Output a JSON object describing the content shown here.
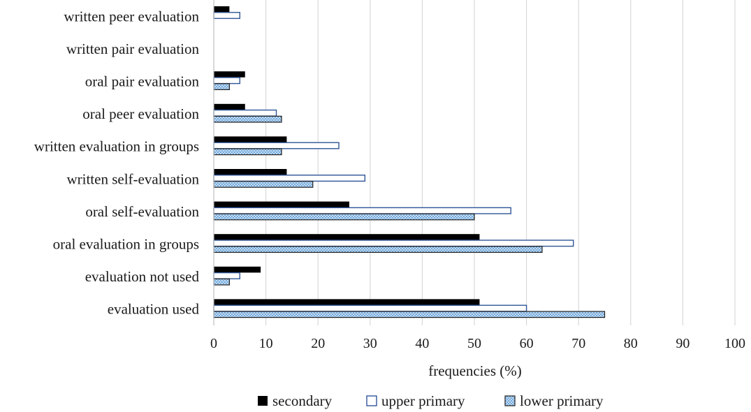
{
  "chart_data": {
    "type": "bar",
    "orientation": "horizontal",
    "title": "",
    "xlabel": "frequencies (%)",
    "ylabel": "",
    "xlim": [
      0,
      100
    ],
    "xticks": [
      0,
      10,
      20,
      30,
      40,
      50,
      60,
      70,
      80,
      90,
      100
    ],
    "grid": true,
    "legend_position": "bottom",
    "categories": [
      "written peer evaluation",
      "written pair evaluation",
      "oral pair evaluation",
      "oral peer evaluation",
      "written evaluation in groups",
      "written self-evaluation",
      "oral self-evaluation",
      "oral evaluation in groups",
      "evaluation not used",
      "evaluation used"
    ],
    "series": [
      {
        "name": "secondary",
        "color": "#000000",
        "style": "solid",
        "values": [
          3,
          0,
          6,
          6,
          14,
          14,
          26,
          51,
          9,
          51
        ]
      },
      {
        "name": "upper primary",
        "color": "#2f5597",
        "style": "outline",
        "values": [
          5,
          0,
          5,
          12,
          24,
          29,
          57,
          69,
          5,
          60
        ]
      },
      {
        "name": "lower primary",
        "color": "#5b9bd5",
        "style": "pattern",
        "values": [
          0,
          0,
          3,
          13,
          13,
          19,
          50,
          63,
          3,
          75
        ]
      }
    ]
  }
}
